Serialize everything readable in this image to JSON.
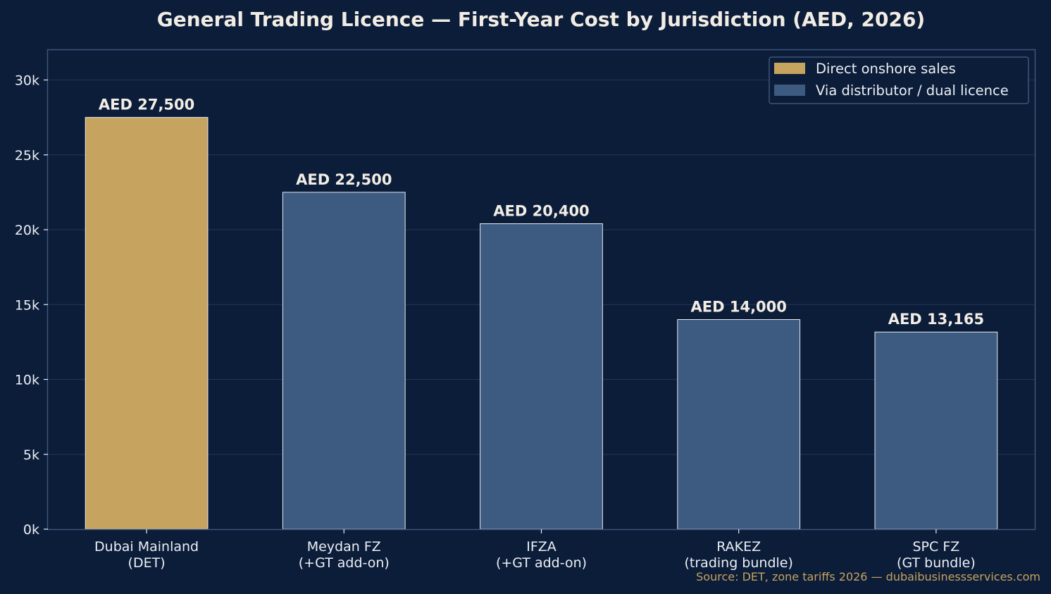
{
  "chart_data": {
    "type": "bar",
    "title": "General Trading Licence — First-Year Cost by Jurisdiction (AED, 2026)",
    "xlabel": "",
    "ylabel": "",
    "ylim": [
      0,
      32000
    ],
    "yticks": [
      0,
      5000,
      10000,
      15000,
      20000,
      25000,
      30000
    ],
    "ytick_labels": [
      "0k",
      "5k",
      "10k",
      "15k",
      "20k",
      "25k",
      "30k"
    ],
    "grid": "horizontal",
    "legend_position": "top-right",
    "categories": [
      [
        "Dubai Mainland",
        "(DET)"
      ],
      [
        "Meydan FZ",
        "(+GT add-on)"
      ],
      [
        "IFZA",
        "(+GT add-on)"
      ],
      [
        "RAKEZ",
        "(trading bundle)"
      ],
      [
        "SPC FZ",
        "(GT bundle)"
      ]
    ],
    "values": [
      27500,
      22500,
      20400,
      14000,
      13165
    ],
    "data_labels": [
      "AED 27,500",
      "AED 22,500",
      "AED 20,400",
      "AED 14,000",
      "AED 13,165"
    ],
    "bar_groups": [
      0,
      1,
      1,
      1,
      1
    ],
    "legend": [
      {
        "label": "Direct onshore sales",
        "color": "#c6a35e"
      },
      {
        "label": "Via distributor / dual licence",
        "color": "#3d5a80"
      }
    ],
    "colors": {
      "background": "#0c1d3a",
      "axis": "#3f5478",
      "grid": "#1f3252",
      "bar_edge": "#e8ecf2"
    },
    "source": "Source: DET, zone tariffs 2026 — dubaibusinessservices.com"
  }
}
